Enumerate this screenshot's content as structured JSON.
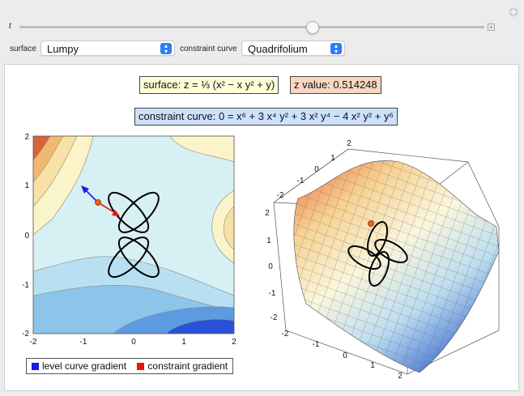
{
  "controls": {
    "t_label": "t",
    "t_value": 0.63,
    "surface_label": "surface",
    "surface_value": "Lumpy",
    "constraint_label": "constraint curve",
    "constraint_value": "Quadrifolium"
  },
  "display": {
    "surface_eq": "surface: z = ⅓ (x² − x y² + y)",
    "z_value": "z value: 0.514248",
    "constraint_eq": "constraint curve: 0 = x⁶ + 3 x⁴ y² + 3 x² y⁴ − 4 x² y² + y⁶"
  },
  "contour": {
    "x_ticks": [
      "-2",
      "-1",
      "0",
      "1",
      "2"
    ],
    "y_ticks": [
      "2",
      "1",
      "0",
      "-1",
      "-2"
    ]
  },
  "surface3d": {
    "top_ticks": [
      "2",
      "1",
      "0",
      "-1",
      "-2"
    ],
    "left_ticks": [
      "2",
      "1",
      "0",
      "-1",
      "-2"
    ],
    "bottom_ticks": [
      "-2",
      "-1",
      "0",
      "1",
      "2"
    ]
  },
  "legend": {
    "level": "level curve gradient",
    "constraint": "constraint gradient",
    "level_color": "#1a1aee",
    "constraint_color": "#ee1111"
  }
}
